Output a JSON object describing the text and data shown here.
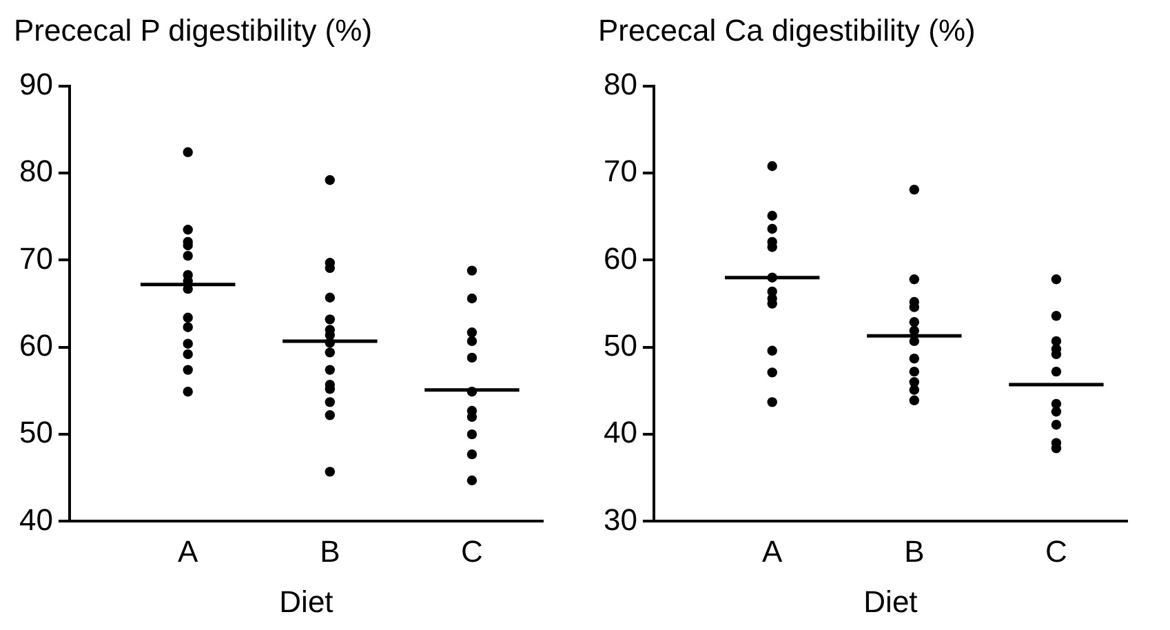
{
  "chart_data": [
    {
      "type": "scatter",
      "title": "Prececal P digestibility (%)",
      "xlabel": "Diet",
      "categories": [
        null,
        null,
        "A",
        null,
        null,
        "B",
        null,
        null,
        "C",
        null
      ],
      "ylim": [
        40,
        90
      ],
      "yticks": [
        40,
        50,
        60,
        70,
        80,
        90
      ],
      "grid": false,
      "legend": false,
      "series": [
        {
          "type": "scatter",
          "marker": "circle",
          "color": "#000000",
          "x": [
            "A",
            "A",
            "A",
            "A",
            "A",
            "A",
            "A",
            "A",
            "A",
            "A",
            "A",
            "A",
            "A",
            "A",
            "B",
            "B",
            "B",
            "B",
            "B",
            "B",
            "B",
            "B",
            "B",
            "B",
            "B",
            "B",
            "B",
            "B",
            "B",
            "C",
            "C",
            "C",
            "C",
            "C",
            "C",
            "C",
            "C",
            "C",
            "C",
            "C"
          ],
          "values": [
            82.4,
            73.5,
            72.1,
            71.7,
            70.5,
            68.3,
            67.6,
            66.7,
            63.4,
            62.3,
            60.4,
            59.2,
            57.4,
            54.9,
            79.2,
            69.7,
            69.1,
            65.7,
            63.2,
            62.0,
            61.4,
            60.5,
            59.4,
            57.4,
            55.7,
            55.2,
            53.7,
            52.2,
            45.7,
            68.8,
            65.6,
            61.7,
            60.7,
            58.8,
            54.9,
            52.7,
            52.0,
            50.0,
            47.7,
            44.7
          ]
        },
        {
          "type": "line",
          "marker": "none",
          "color": "#000000",
          "values": [
            null,
            67.2,
            67.2,
            67.2,
            null,
            null,
            null,
            null,
            null,
            null
          ]
        },
        {
          "type": "line",
          "marker": "none",
          "color": "#000000",
          "values": [
            null,
            null,
            null,
            null,
            60.7,
            60.7,
            60.7,
            null,
            null,
            null
          ]
        },
        {
          "type": "line",
          "marker": "none",
          "color": "#000000",
          "values": [
            null,
            null,
            null,
            null,
            null,
            null,
            null,
            55.1,
            55.1,
            55.1
          ]
        }
      ]
    },
    {
      "type": "scatter",
      "title": "Prececal Ca digestibility (%)",
      "xlabel": "Diet",
      "categories": [
        null,
        null,
        "A",
        null,
        null,
        "B",
        null,
        null,
        "C",
        null
      ],
      "ylim": [
        30,
        80
      ],
      "yticks": [
        30,
        40,
        50,
        60,
        70,
        80
      ],
      "grid": false,
      "legend": false,
      "series": [
        {
          "type": "scatter",
          "marker": "circle",
          "color": "#000000",
          "x": [
            "A",
            "A",
            "A",
            "A",
            "A",
            "A",
            "A",
            "A",
            "A",
            "A",
            "A",
            "A",
            "B",
            "B",
            "B",
            "B",
            "B",
            "B",
            "B",
            "B",
            "B",
            "B",
            "B",
            "B",
            "C",
            "C",
            "C",
            "C",
            "C",
            "C",
            "C",
            "C",
            "C",
            "C",
            "C"
          ],
          "values": [
            70.8,
            65.1,
            63.6,
            62.1,
            61.5,
            58.0,
            56.4,
            55.6,
            55.0,
            49.6,
            47.1,
            43.7,
            68.1,
            57.8,
            55.2,
            54.6,
            52.9,
            51.9,
            50.7,
            48.7,
            47.2,
            46.0,
            45.1,
            43.9,
            57.8,
            53.6,
            50.7,
            49.8,
            49.2,
            47.2,
            43.5,
            42.6,
            41.1,
            39.0,
            38.4
          ]
        },
        {
          "type": "line",
          "marker": "none",
          "color": "#000000",
          "values": [
            null,
            58.0,
            58.0,
            58.0,
            null,
            null,
            null,
            null,
            null,
            null
          ]
        },
        {
          "type": "line",
          "marker": "none",
          "color": "#000000",
          "values": [
            null,
            null,
            null,
            null,
            51.3,
            51.3,
            51.3,
            null,
            null,
            null
          ]
        },
        {
          "type": "line",
          "marker": "none",
          "color": "#000000",
          "values": [
            null,
            null,
            null,
            null,
            null,
            null,
            null,
            45.7,
            45.7,
            45.7
          ]
        }
      ]
    }
  ]
}
